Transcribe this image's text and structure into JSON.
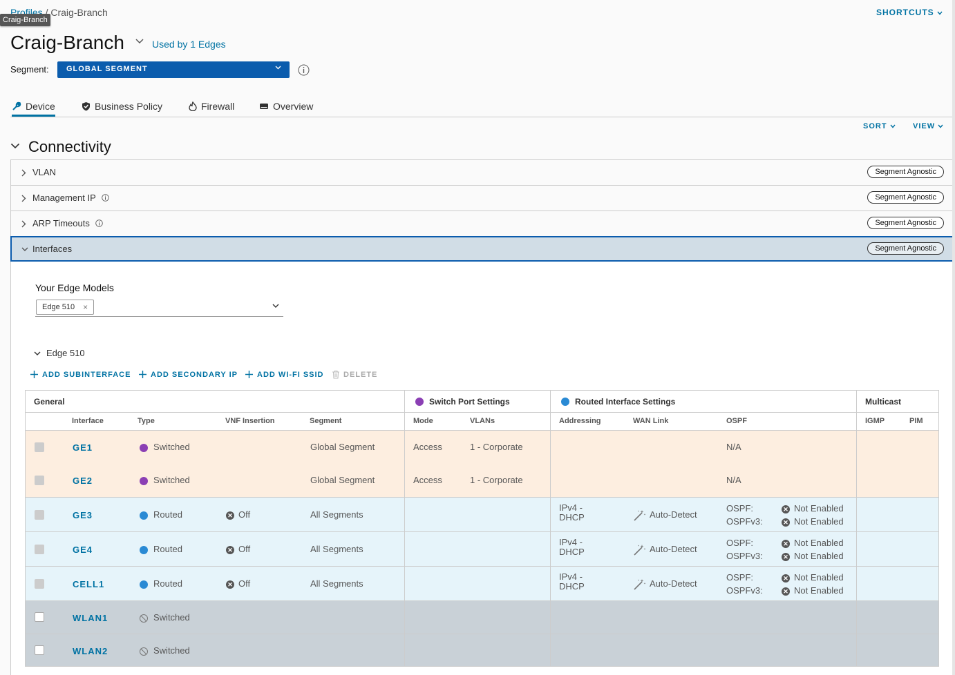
{
  "breadcrumb": {
    "root": "Profiles",
    "sep": "/",
    "current": "Craig-Branch"
  },
  "tooltip": "Craig-Branch",
  "shortcuts": "SHORTCUTS",
  "header": {
    "title": "Craig-Branch",
    "used_by": "Used by 1 Edges"
  },
  "segment": {
    "label": "Segment:",
    "value": "GLOBAL SEGMENT"
  },
  "tabs": [
    {
      "label": "Device",
      "icon": "wrench-icon"
    },
    {
      "label": "Business Policy",
      "icon": "shield-check-icon"
    },
    {
      "label": "Firewall",
      "icon": "flame-icon"
    },
    {
      "label": "Overview",
      "icon": "device-icon"
    }
  ],
  "sort": "SORT",
  "view": "VIEW",
  "section": "Connectivity",
  "accordion": [
    {
      "label": "VLAN",
      "badge": "Segment Agnostic"
    },
    {
      "label": "Management IP",
      "badge": "Segment Agnostic"
    },
    {
      "label": "ARP Timeouts",
      "badge": "Segment Agnostic"
    },
    {
      "label": "Interfaces",
      "badge": "Segment Agnostic"
    }
  ],
  "models": {
    "label": "Your Edge Models",
    "chip": "Edge 510",
    "chip_remove": "×"
  },
  "edge": {
    "title": "Edge 510"
  },
  "toolbar": {
    "add_sub": "ADD SUBINTERFACE",
    "add_ip": "ADD SECONDARY IP",
    "add_wifi": "ADD WI-FI SSID",
    "delete": "DELETE"
  },
  "table": {
    "groups": {
      "general": "General",
      "switch": "Switch Port Settings",
      "routed": "Routed Interface Settings",
      "multicast": "Multicast"
    },
    "columns": {
      "interface": "Interface",
      "type": "Type",
      "vnf": "VNF Insertion",
      "segment": "Segment",
      "mode": "Mode",
      "vlans": "VLANs",
      "addressing": "Addressing",
      "wan": "WAN Link",
      "ospf": "OSPF",
      "igmp": "IGMP",
      "pim": "PIM"
    },
    "rows": [
      {
        "iface": "GE1",
        "type": "Switched",
        "vnf": "",
        "segment": "Global Segment",
        "mode": "Access",
        "vlans": "1 - Corporate",
        "ospf": "N/A"
      },
      {
        "iface": "GE2",
        "type": "Switched",
        "vnf": "",
        "segment": "Global Segment",
        "mode": "Access",
        "vlans": "1 - Corporate",
        "ospf": "N/A"
      },
      {
        "iface": "GE3",
        "type": "Routed",
        "vnf": "Off",
        "segment": "All Segments",
        "addr1": "IPv4 -",
        "addr2": "DHCP",
        "wan": "Auto-Detect",
        "ospf_l": "OSPF:",
        "ospf_v3_l": "OSPFv3:",
        "ospf_v": "Not Enabled",
        "ospf_v3_v": "Not Enabled"
      },
      {
        "iface": "GE4",
        "type": "Routed",
        "vnf": "Off",
        "segment": "All Segments",
        "addr1": "IPv4 -",
        "addr2": "DHCP",
        "wan": "Auto-Detect",
        "ospf_l": "OSPF:",
        "ospf_v3_l": "OSPFv3:",
        "ospf_v": "Not Enabled",
        "ospf_v3_v": "Not Enabled"
      },
      {
        "iface": "CELL1",
        "type": "Routed",
        "vnf": "Off",
        "segment": "All Segments",
        "addr1": "IPv4 -",
        "addr2": "DHCP",
        "wan": "Auto-Detect",
        "ospf_l": "OSPF:",
        "ospf_v3_l": "OSPFv3:",
        "ospf_v": "Not Enabled",
        "ospf_v3_v": "Not Enabled"
      },
      {
        "iface": "WLAN1",
        "type": "Switched"
      },
      {
        "iface": "WLAN2",
        "type": "Switched"
      }
    ]
  },
  "colors": {
    "accent": "#0072a3",
    "switched_row": "#fdeee0",
    "routed_row": "#e6f4fa",
    "disabled_row": "#c9d1d7",
    "switched_icon": "#8b3fb4",
    "routed_icon": "#2a8ad4"
  }
}
